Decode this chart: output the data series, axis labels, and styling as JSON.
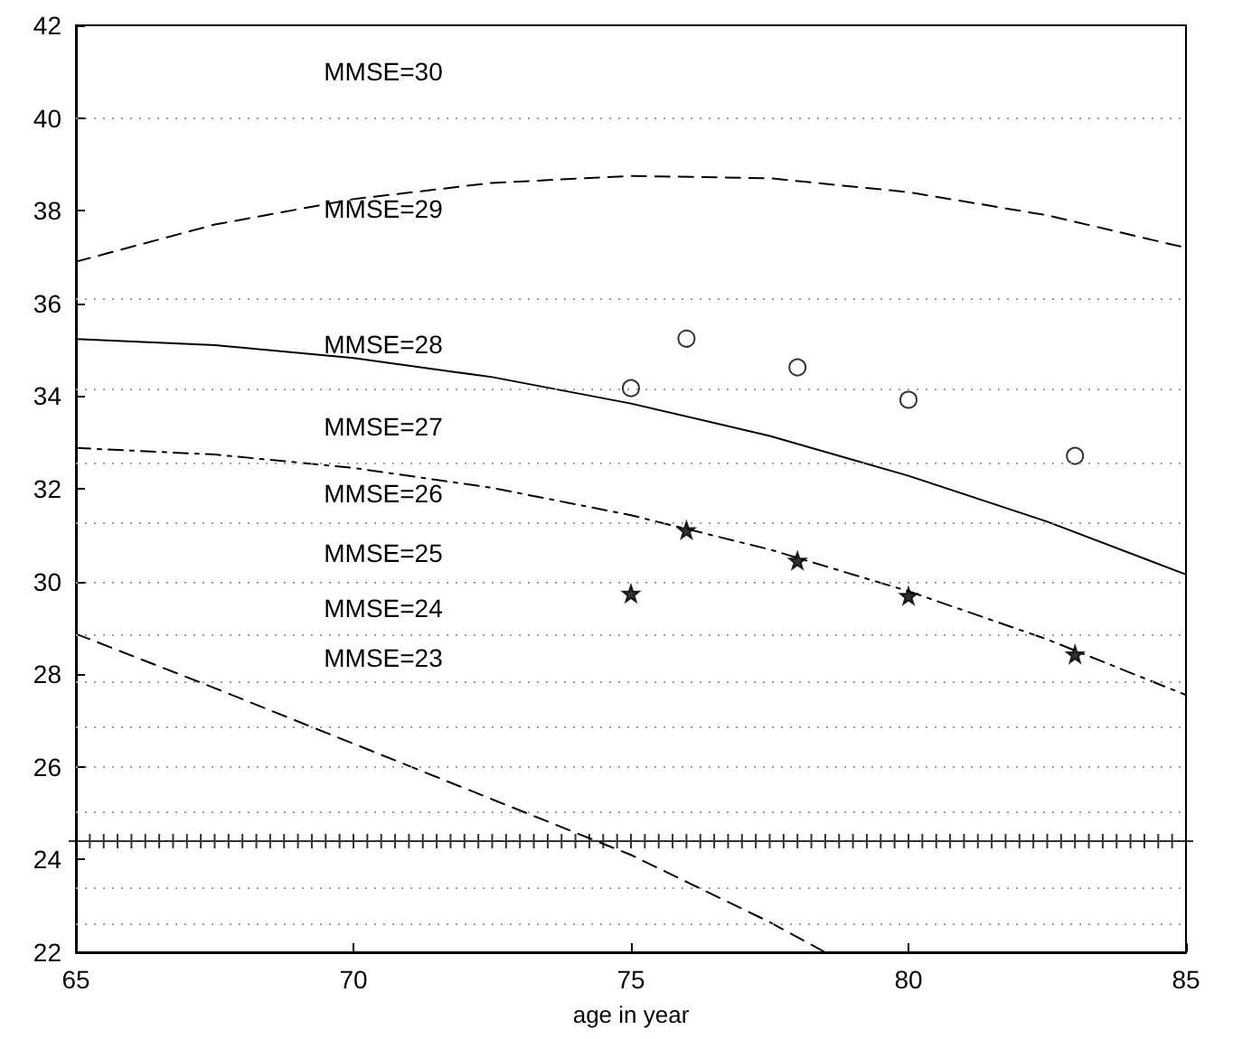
{
  "chart_data": {
    "type": "line",
    "xlabel": "age in year",
    "xlim": [
      65,
      85
    ],
    "xticks": [
      65,
      70,
      75,
      80,
      85
    ],
    "ylim": [
      22,
      42
    ],
    "yticks": [
      22,
      24,
      26,
      28,
      30,
      32,
      34,
      36,
      38,
      40,
      42
    ],
    "grid": false,
    "series": [
      {
        "color": "#000000",
        "line_style": "dashed",
        "marker": "none",
        "x": [
          65,
          67.5,
          70,
          72.5,
          75,
          77.5,
          80,
          82.5,
          85
        ],
        "values": [
          36.9,
          37.7,
          38.25,
          38.6,
          38.75,
          38.7,
          38.4,
          37.9,
          37.2
        ]
      },
      {
        "color": "#000000",
        "line_style": "solid",
        "marker": "none",
        "x": [
          65,
          67.5,
          70,
          72.5,
          75,
          77.5,
          80,
          82.5,
          85
        ],
        "values": [
          35.23,
          35.1,
          34.82,
          34.41,
          33.84,
          33.14,
          32.28,
          31.29,
          30.15
        ]
      },
      {
        "color": "#000000",
        "line_style": "dashdot",
        "marker": "none",
        "x": [
          65,
          67.5,
          70,
          72.5,
          75,
          77.5,
          80,
          82.5,
          85
        ],
        "values": [
          32.88,
          32.74,
          32.45,
          32.02,
          31.43,
          30.69,
          29.79,
          28.75,
          27.55
        ]
      },
      {
        "color": "#000000",
        "line_style": "dashed",
        "marker": "none",
        "x": [
          65,
          67.5,
          70,
          72.5,
          75,
          77.5,
          78.5
        ],
        "values": [
          28.87,
          27.7,
          26.5,
          25.3,
          24.1,
          22.65,
          22.0
        ]
      },
      {
        "type": "scatter",
        "color": "#000000",
        "marker": "cross",
        "x": [
          65,
          65.25,
          65.5,
          65.75,
          66,
          66.25,
          66.5,
          66.75,
          67,
          67.25,
          67.5,
          67.75,
          68,
          68.25,
          68.5,
          68.75,
          69,
          69.25,
          69.5,
          69.75,
          70,
          70.25,
          70.5,
          70.75,
          71,
          71.25,
          71.5,
          71.75,
          72,
          72.25,
          72.5,
          72.75,
          73,
          73.25,
          73.5,
          73.75,
          74,
          74.25,
          74.5,
          74.75,
          75,
          75.25,
          75.5,
          75.75,
          76,
          76.25,
          76.5,
          76.75,
          77,
          77.25,
          77.5,
          77.75,
          78,
          78.25,
          78.5,
          78.75,
          79,
          79.25,
          79.5,
          79.75,
          80,
          80.25,
          80.5,
          80.75,
          81,
          81.25,
          81.5,
          81.75,
          82,
          82.25,
          82.5,
          82.75,
          83,
          83.25,
          83.5,
          83.75,
          84,
          84.25,
          84.5,
          84.75,
          85
        ],
        "values": [
          24.4,
          24.4,
          24.4,
          24.4,
          24.4,
          24.4,
          24.4,
          24.4,
          24.4,
          24.4,
          24.4,
          24.4,
          24.4,
          24.4,
          24.4,
          24.4,
          24.4,
          24.4,
          24.4,
          24.4,
          24.4,
          24.4,
          24.4,
          24.4,
          24.4,
          24.4,
          24.4,
          24.4,
          24.4,
          24.4,
          24.4,
          24.4,
          24.4,
          24.4,
          24.4,
          24.4,
          24.4,
          24.4,
          24.4,
          24.4,
          24.4,
          24.4,
          24.4,
          24.4,
          24.4,
          24.4,
          24.4,
          24.4,
          24.4,
          24.4,
          24.4,
          24.4,
          24.4,
          24.4,
          24.4,
          24.4,
          24.4,
          24.4,
          24.4,
          24.4,
          24.4,
          24.4,
          24.4,
          24.4,
          24.4,
          24.4,
          24.4,
          24.4,
          24.4,
          24.4,
          24.4,
          24.4,
          24.4,
          24.4,
          24.4,
          24.4,
          24.4,
          24.4,
          24.4,
          24.4,
          24.4
        ]
      },
      {
        "type": "scatter",
        "color": "#000000",
        "marker": "circle",
        "x": [
          75,
          76,
          78,
          80,
          83
        ],
        "values": [
          34.17,
          35.24,
          34.62,
          33.92,
          32.71
        ]
      },
      {
        "type": "scatter",
        "color": "#000000",
        "marker": "star",
        "x": [
          75,
          76,
          78,
          80,
          83
        ],
        "values": [
          29.74,
          31.11,
          30.45,
          29.69,
          28.43
        ]
      }
    ],
    "ref_lines": [
      {
        "axis": "y",
        "value": 40.0,
        "label": null,
        "color": "#999999",
        "line_style": "dotted"
      },
      {
        "axis": "y",
        "value": 36.1,
        "label": null,
        "color": "#999999",
        "line_style": "dotted"
      },
      {
        "axis": "y",
        "value": 34.15,
        "label": null,
        "color": "#999999",
        "line_style": "dotted"
      },
      {
        "axis": "y",
        "value": 32.55,
        "label": null,
        "color": "#999999",
        "line_style": "dotted"
      },
      {
        "axis": "y",
        "value": 31.25,
        "label": null,
        "color": "#999999",
        "line_style": "dotted"
      },
      {
        "axis": "y",
        "value": 30.0,
        "label": null,
        "color": "#999999",
        "line_style": "dotted"
      },
      {
        "axis": "y",
        "value": 28.85,
        "label": null,
        "color": "#999999",
        "line_style": "dotted"
      },
      {
        "axis": "y",
        "value": 27.85,
        "label": null,
        "color": "#999999",
        "line_style": "dotted"
      },
      {
        "axis": "y",
        "value": 26.85,
        "label": null,
        "color": "#999999",
        "line_style": "dotted"
      },
      {
        "axis": "y",
        "value": 26.0,
        "label": null,
        "color": "#999999",
        "line_style": "dotted"
      },
      {
        "axis": "y",
        "value": 25.05,
        "label": null,
        "color": "#999999",
        "line_style": "dotted"
      },
      {
        "axis": "y",
        "value": 23.4,
        "label": null,
        "color": "#999999",
        "line_style": "dotted"
      },
      {
        "axis": "y",
        "value": 22.6,
        "label": null,
        "color": "#999999",
        "line_style": "dotted"
      }
    ],
    "annotations": [
      "MMSE=30",
      "MMSE=29",
      "MMSE=28",
      "MMSE=27",
      "MMSE=26",
      "MMSE=25",
      "MMSE=24",
      "MMSE=23"
    ]
  }
}
